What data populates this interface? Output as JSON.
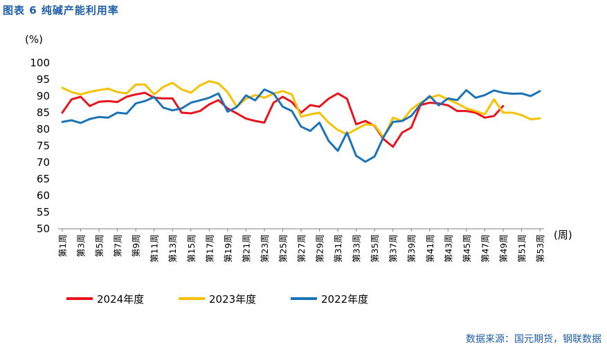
{
  "figure": {
    "title": "图表 6  纯碱产能利用率"
  },
  "source": "数据来源：国元期货，钢联数据",
  "chart_data": {
    "type": "line",
    "ylabel": "(%)",
    "xlabel": "(周)",
    "ylim": [
      50,
      100
    ],
    "yticks": [
      50,
      55,
      60,
      65,
      70,
      75,
      80,
      85,
      90,
      95,
      100
    ],
    "x": [
      1,
      2,
      3,
      4,
      5,
      6,
      7,
      8,
      9,
      10,
      11,
      12,
      13,
      14,
      15,
      16,
      17,
      18,
      19,
      20,
      21,
      22,
      23,
      24,
      25,
      26,
      27,
      28,
      29,
      30,
      31,
      32,
      33,
      34,
      35,
      36,
      37,
      38,
      39,
      40,
      41,
      42,
      43,
      44,
      45,
      46,
      47,
      48,
      49,
      50,
      51,
      52,
      53
    ],
    "xtick_labels": [
      "第1周",
      "第3周",
      "第5周",
      "第7周",
      "第9周",
      "第11周",
      "第13周",
      "第15周",
      "第17周",
      "第19周",
      "第21周",
      "第23周",
      "第25周",
      "第27周",
      "第29周",
      "第31周",
      "第33周",
      "第35周",
      "第37周",
      "第39周",
      "第41周",
      "第43周",
      "第45周",
      "第47周",
      "第49周",
      "第51周",
      "第53周"
    ],
    "xtick_positions": [
      1,
      3,
      5,
      7,
      9,
      11,
      13,
      15,
      17,
      19,
      21,
      23,
      25,
      27,
      29,
      31,
      33,
      35,
      37,
      39,
      41,
      43,
      45,
      47,
      49,
      51,
      53
    ],
    "legend_position": "bottom",
    "grid": false,
    "series": [
      {
        "name": "2024年度",
        "color": "#e8131b",
        "values": [
          85,
          89,
          89.8,
          87,
          88.3,
          88.5,
          88.2,
          89.8,
          90.5,
          91,
          89.5,
          89.3,
          89.3,
          85,
          84.8,
          85.5,
          87.5,
          88.8,
          86.3,
          84.8,
          83.2,
          82.5,
          82,
          88,
          89.8,
          88.2,
          85,
          87.3,
          86.8,
          89.2,
          90.8,
          89.2,
          81.5,
          82.5,
          81,
          77,
          74.7,
          79,
          80.5,
          87.3,
          88,
          87.8,
          87.2,
          85.5,
          85.5,
          85,
          83.5,
          84,
          87,
          null,
          null,
          null,
          null
        ]
      },
      {
        "name": "2023年度",
        "color": "#f7c100",
        "values": [
          92.5,
          91.2,
          90.5,
          91.3,
          91.8,
          92.2,
          91.2,
          90.8,
          93.5,
          93.5,
          90.5,
          92.8,
          94,
          92,
          91,
          93.2,
          94.5,
          93.8,
          91.2,
          86.8,
          89.2,
          90.3,
          89.5,
          90.7,
          91.5,
          90.5,
          83.8,
          84.5,
          85,
          82,
          79.8,
          78.5,
          80,
          81.5,
          81.2,
          77.5,
          83.5,
          82.5,
          86,
          88,
          89.5,
          90.3,
          89,
          87.8,
          86.3,
          85.5,
          84.5,
          89,
          85,
          85,
          84.3,
          83,
          83.3
        ]
      },
      {
        "name": "2022年度",
        "color": "#1a73b8",
        "values": [
          82.2,
          82.7,
          81.9,
          83.1,
          83.7,
          83.5,
          85,
          84.7,
          87.8,
          88.5,
          89.7,
          86.5,
          85.7,
          86.3,
          88,
          88.7,
          89.5,
          90.8,
          85.3,
          86.7,
          90.2,
          88.7,
          92,
          90.8,
          86.8,
          85.5,
          80.8,
          79.5,
          82,
          76.5,
          73.5,
          79,
          72,
          70.2,
          71.8,
          77.8,
          82.2,
          82.5,
          84,
          87.5,
          90,
          87.2,
          89.3,
          88.8,
          91.8,
          89.5,
          90.3,
          91.7,
          91,
          90.7,
          90.8,
          90,
          91.5
        ]
      }
    ]
  }
}
